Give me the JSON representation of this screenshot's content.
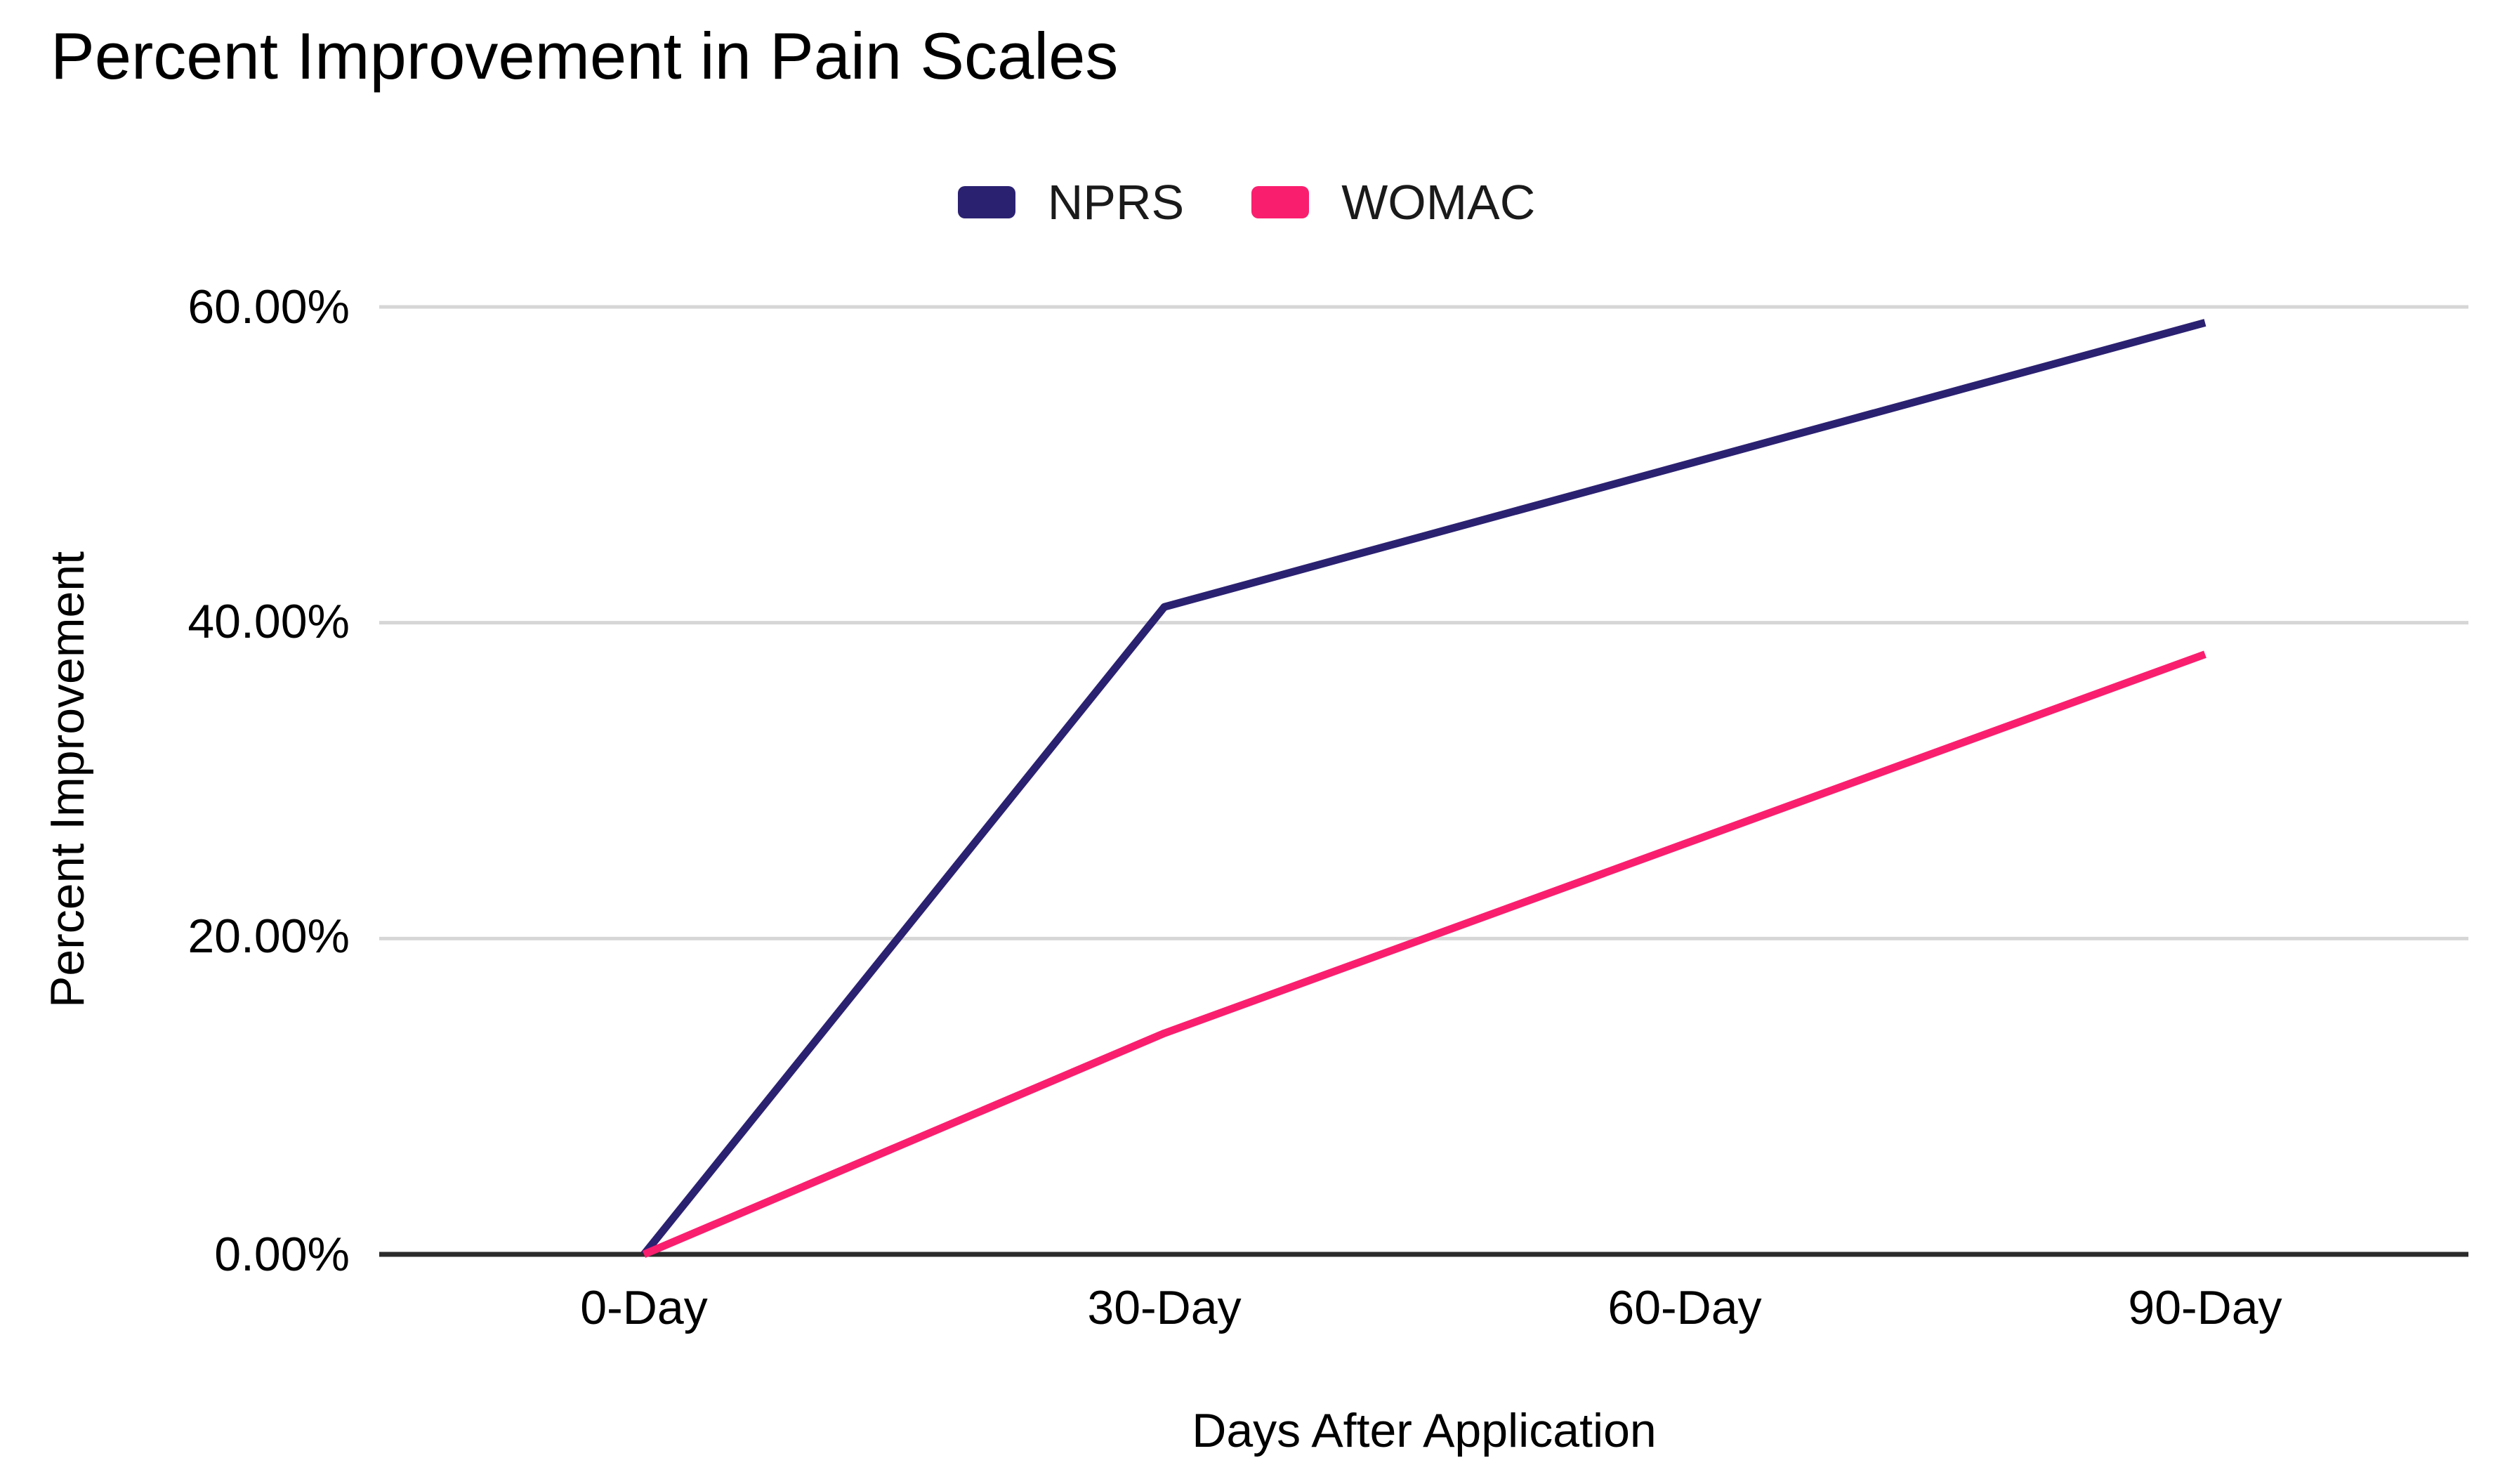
{
  "header": {
    "title": "Percent Improvement in Pain Scales"
  },
  "chart_data": {
    "type": "line",
    "title": "Percent Improvement in Pain Scales",
    "xlabel": "Days After Application",
    "ylabel": "Percent Improvement",
    "categories": [
      "0-Day",
      "30-Day",
      "60-Day",
      "90-Day"
    ],
    "series": [
      {
        "name": "NPRS",
        "color": "#2b2171",
        "values": [
          0,
          41,
          50,
          59
        ]
      },
      {
        "name": "WOMAC",
        "color": "#fa1e6e",
        "values": [
          0,
          14,
          26,
          38
        ]
      }
    ],
    "ytick_labels": [
      "0.00%",
      "20.00%",
      "40.00%",
      "60.00%"
    ],
    "ytick_values": [
      0,
      20,
      40,
      60
    ],
    "ylim": [
      0,
      60
    ],
    "grid": true,
    "legend_position": "top",
    "grid_color": "#d6d6d6",
    "axis_color": "#2b2b2b"
  }
}
